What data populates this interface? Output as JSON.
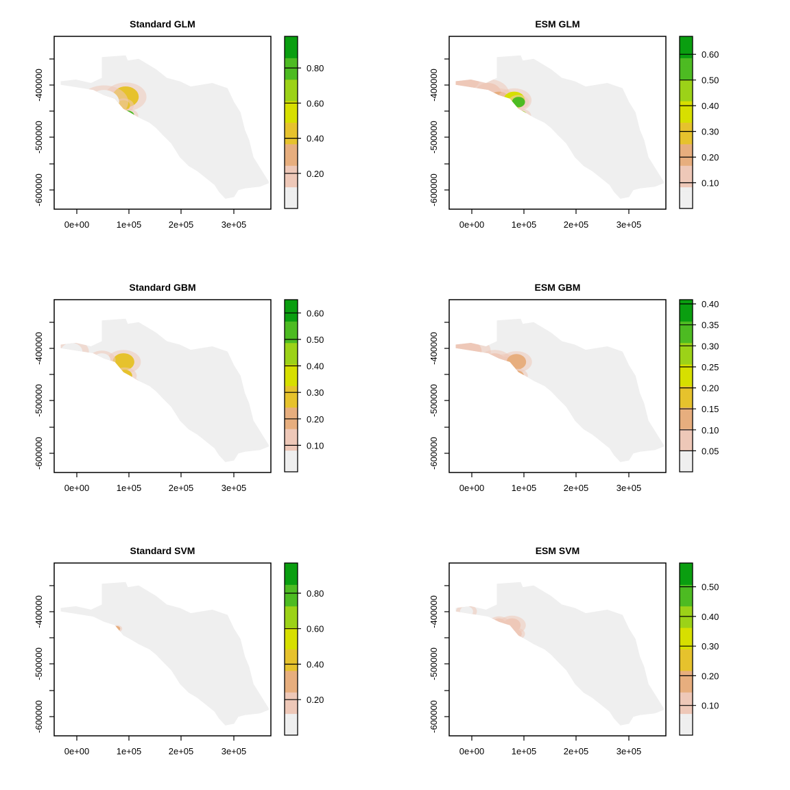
{
  "figure": {
    "palette": [
      "#efefef",
      "#eec8b8",
      "#e7ae7e",
      "#e6c22d",
      "#d7df00",
      "#9cd218",
      "#4dbb22",
      "#0a9e10"
    ],
    "land_color": "#efefef",
    "x_ticks": [
      "0e+00",
      "1e+05",
      "2e+05",
      "3e+05"
    ],
    "y_ticks": [
      "-400000",
      "-500000",
      "-600000"
    ]
  },
  "panels": [
    {
      "title": "Standard GLM",
      "legend": {
        "max": 0.98,
        "ticks": [
          "0.20",
          "0.40",
          "0.60",
          "0.80"
        ],
        "tick_values": [
          0.2,
          0.4,
          0.6,
          0.8
        ]
      },
      "hotspots": [
        [
          0.28,
          0.38,
          0.05,
          0.18
        ],
        [
          0.33,
          0.35,
          0.06,
          0.4
        ],
        [
          0.32,
          0.4,
          0.03,
          0.48
        ],
        [
          0.34,
          0.46,
          0.03,
          0.75
        ],
        [
          0.315,
          0.52,
          0.02,
          0.65
        ],
        [
          0.32,
          0.56,
          0.035,
          0.85
        ],
        [
          0.34,
          0.6,
          0.02,
          0.45
        ],
        [
          0.33,
          0.66,
          0.03,
          0.7
        ],
        [
          0.31,
          0.62,
          0.02,
          0.35
        ],
        [
          0.23,
          0.38,
          0.07,
          0.1
        ],
        [
          0.28,
          0.7,
          0.05,
          0.12
        ],
        [
          0.1,
          0.4,
          0.06,
          0.06
        ]
      ]
    },
    {
      "title": "ESM GLM",
      "legend": {
        "max": 0.67,
        "ticks": [
          "0.10",
          "0.20",
          "0.30",
          "0.40",
          "0.50",
          "0.60"
        ],
        "tick_values": [
          0.1,
          0.2,
          0.3,
          0.4,
          0.5,
          0.6
        ]
      },
      "hotspots": [
        [
          0.08,
          0.25,
          0.06,
          0.15
        ],
        [
          0.18,
          0.33,
          0.06,
          0.14
        ],
        [
          0.23,
          0.37,
          0.05,
          0.35
        ],
        [
          0.3,
          0.37,
          0.05,
          0.55
        ],
        [
          0.32,
          0.38,
          0.03,
          0.8
        ],
        [
          0.33,
          0.46,
          0.03,
          0.7
        ],
        [
          0.35,
          0.55,
          0.025,
          0.55
        ],
        [
          0.32,
          0.63,
          0.03,
          0.55
        ],
        [
          0.34,
          0.66,
          0.03,
          0.45
        ],
        [
          0.3,
          0.58,
          0.04,
          0.2
        ],
        [
          0.25,
          0.45,
          0.05,
          0.12
        ]
      ]
    },
    {
      "title": "Standard GBM",
      "legend": {
        "max": 0.65,
        "ticks": [
          "0.10",
          "0.20",
          "0.30",
          "0.40",
          "0.50",
          "0.60"
        ],
        "tick_values": [
          0.1,
          0.2,
          0.3,
          0.4,
          0.5,
          0.6
        ]
      },
      "hotspots": [
        [
          0.32,
          0.36,
          0.05,
          0.47
        ],
        [
          0.325,
          0.44,
          0.035,
          0.47
        ],
        [
          0.34,
          0.6,
          0.035,
          0.47
        ],
        [
          0.33,
          0.55,
          0.025,
          0.35
        ],
        [
          0.36,
          0.48,
          0.02,
          0.2
        ],
        [
          0.22,
          0.35,
          0.04,
          0.08
        ],
        [
          0.08,
          0.3,
          0.05,
          0.06
        ]
      ]
    },
    {
      "title": "ESM GBM",
      "legend": {
        "max": 0.41,
        "ticks": [
          "0.05",
          "0.10",
          "0.15",
          "0.20",
          "0.25",
          "0.30",
          "0.35",
          "0.40"
        ],
        "tick_values": [
          0.05,
          0.1,
          0.15,
          0.2,
          0.25,
          0.3,
          0.35,
          0.4
        ]
      },
      "hotspots": [
        [
          0.08,
          0.3,
          0.07,
          0.16
        ],
        [
          0.21,
          0.36,
          0.05,
          0.16
        ],
        [
          0.26,
          0.37,
          0.04,
          0.16
        ],
        [
          0.31,
          0.36,
          0.045,
          0.27
        ],
        [
          0.315,
          0.44,
          0.03,
          0.26
        ],
        [
          0.33,
          0.58,
          0.04,
          0.25
        ],
        [
          0.35,
          0.5,
          0.03,
          0.14
        ],
        [
          0.31,
          0.55,
          0.03,
          0.15
        ]
      ]
    },
    {
      "title": "Standard SVM",
      "legend": {
        "max": 0.97,
        "ticks": [
          "0.20",
          "0.40",
          "0.60",
          "0.80"
        ],
        "tick_values": [
          0.2,
          0.4,
          0.6,
          0.8
        ]
      },
      "hotspots": [
        [
          0.32,
          0.6,
          0.03,
          0.75
        ],
        [
          0.33,
          0.65,
          0.02,
          0.35
        ],
        [
          0.29,
          0.38,
          0.015,
          0.25
        ],
        [
          0.31,
          0.47,
          0.02,
          0.15
        ]
      ]
    },
    {
      "title": "ESM SVM",
      "legend": {
        "max": 0.58,
        "ticks": [
          "0.10",
          "0.20",
          "0.30",
          "0.40",
          "0.50"
        ],
        "tick_values": [
          0.1,
          0.2,
          0.3,
          0.4,
          0.5
        ]
      },
      "hotspots": [
        [
          0.23,
          0.35,
          0.03,
          0.18
        ],
        [
          0.29,
          0.36,
          0.04,
          0.22
        ],
        [
          0.31,
          0.41,
          0.025,
          0.18
        ],
        [
          0.32,
          0.61,
          0.03,
          0.4
        ],
        [
          0.33,
          0.65,
          0.02,
          0.18
        ],
        [
          0.08,
          0.28,
          0.03,
          0.06
        ],
        [
          0.3,
          0.47,
          0.02,
          0.1
        ]
      ]
    }
  ]
}
